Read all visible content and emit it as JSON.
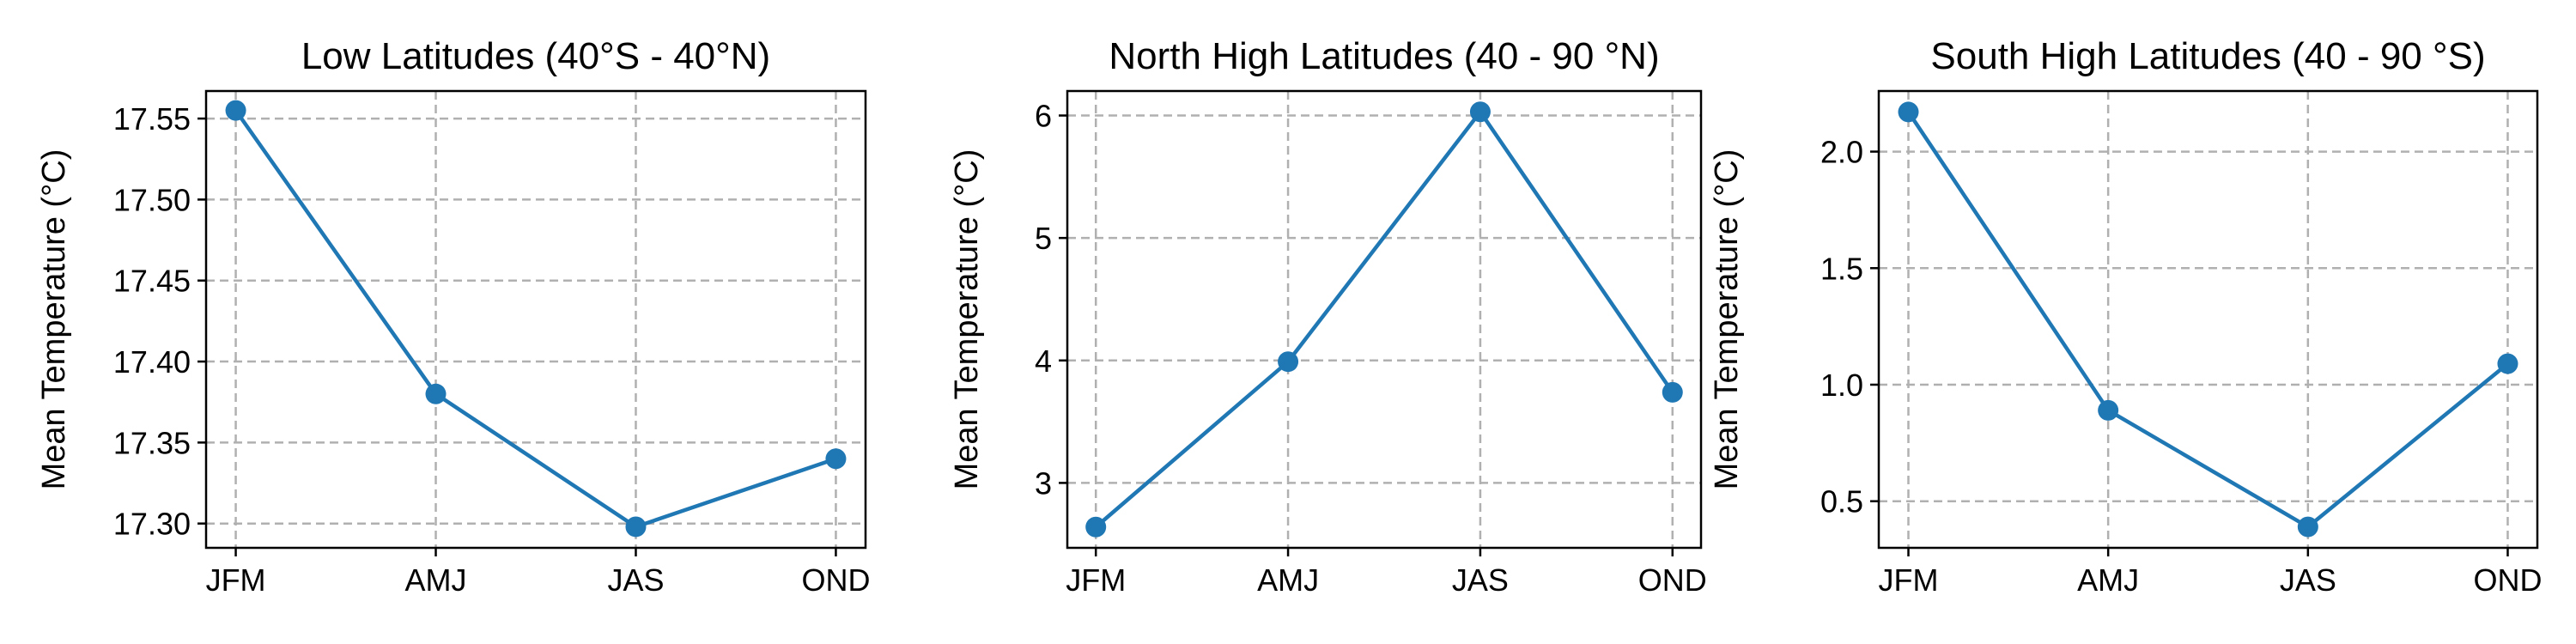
{
  "chart_data": [
    {
      "type": "line",
      "title": "Low Latitudes (40°S - 40°N)",
      "xlabel": "",
      "ylabel": "Mean Temperature (°C)",
      "categories": [
        "JFM",
        "AMJ",
        "JAS",
        "OND"
      ],
      "series": [
        {
          "values": [
            17.555,
            17.38,
            17.298,
            17.34
          ],
          "color": "#1f77b4"
        }
      ],
      "ylim": [
        17.285,
        17.567
      ],
      "yticks": [
        17.3,
        17.35,
        17.4,
        17.45,
        17.5,
        17.55
      ],
      "ytick_labels": [
        "17.30",
        "17.35",
        "17.40",
        "17.45",
        "17.50",
        "17.55"
      ],
      "grid": true,
      "marker": "circle"
    },
    {
      "type": "line",
      "title": "North High Latitudes (40 - 90 °N)",
      "xlabel": "",
      "ylabel": "Mean Temperature (°C)",
      "categories": [
        "JFM",
        "AMJ",
        "JAS",
        "OND"
      ],
      "series": [
        {
          "values": [
            2.64,
            3.99,
            6.03,
            3.74
          ],
          "color": "#1f77b4"
        }
      ],
      "ylim": [
        2.47,
        6.2
      ],
      "yticks": [
        3,
        4,
        5,
        6
      ],
      "ytick_labels": [
        "3",
        "4",
        "5",
        "6"
      ],
      "grid": true,
      "marker": "circle"
    },
    {
      "type": "line",
      "title": "South High Latitudes (40 - 90 °S)",
      "xlabel": "",
      "ylabel": "Mean Temperature (°C)",
      "categories": [
        "JFM",
        "AMJ",
        "JAS",
        "OND"
      ],
      "series": [
        {
          "values": [
            2.17,
            0.89,
            0.39,
            1.09
          ],
          "color": "#1f77b4"
        }
      ],
      "ylim": [
        0.3,
        2.26
      ],
      "yticks": [
        0.5,
        1.0,
        1.5,
        2.0
      ],
      "ytick_labels": [
        "0.5",
        "1.0",
        "1.5",
        "2.0"
      ],
      "grid": true,
      "marker": "circle"
    }
  ]
}
